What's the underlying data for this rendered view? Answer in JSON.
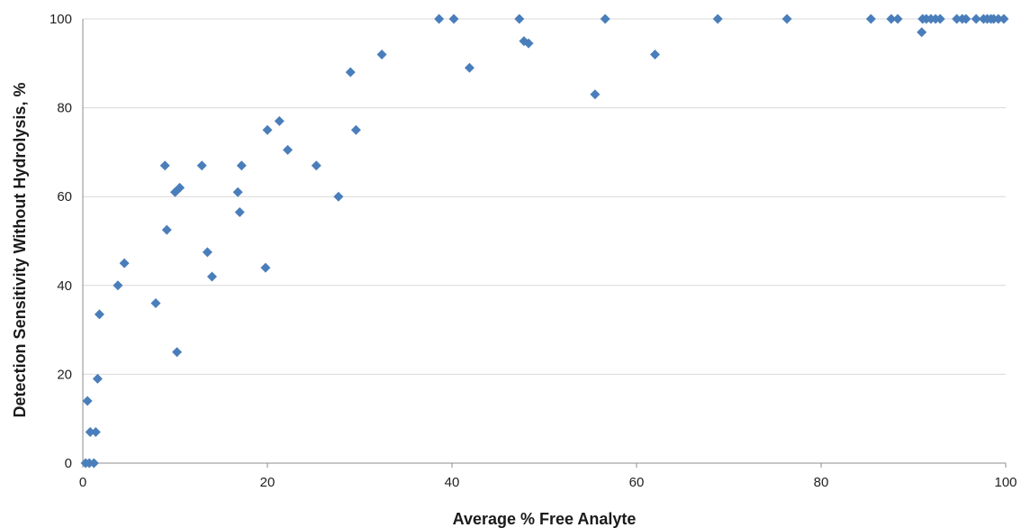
{
  "chart_data": {
    "type": "scatter",
    "title": "",
    "xlabel": "Average % Free Analyte",
    "ylabel": "Detection Sensitivity Without Hydrolysis, %",
    "xlim": [
      0,
      100
    ],
    "ylim": [
      0,
      100
    ],
    "x_ticks": [
      "0",
      "20",
      "40",
      "60",
      "80",
      "100"
    ],
    "y_ticks": [
      "0",
      "20",
      "40",
      "60",
      "80",
      "100"
    ],
    "grid": "horizontal",
    "legend": "none",
    "marker": "diamond",
    "marker_color": "#4a7ebb",
    "series": [
      {
        "points": [
          [
            0.3,
            0
          ],
          [
            0.7,
            0
          ],
          [
            1.2,
            0
          ],
          [
            0.5,
            14
          ],
          [
            0.8,
            7
          ],
          [
            1.4,
            7
          ],
          [
            1.6,
            19
          ],
          [
            1.8,
            33.5
          ],
          [
            3.8,
            40
          ],
          [
            4.5,
            45
          ],
          [
            7.9,
            36
          ],
          [
            8.9,
            67
          ],
          [
            9.1,
            52.5
          ],
          [
            10.0,
            61
          ],
          [
            10.5,
            62
          ],
          [
            10.2,
            25
          ],
          [
            12.9,
            67
          ],
          [
            13.5,
            47.5
          ],
          [
            14.0,
            42
          ],
          [
            16.8,
            61
          ],
          [
            17.0,
            56.5
          ],
          [
            17.2,
            67
          ],
          [
            19.8,
            44
          ],
          [
            20.0,
            75
          ],
          [
            21.3,
            77
          ],
          [
            22.2,
            70.5
          ],
          [
            25.3,
            67
          ],
          [
            27.7,
            60
          ],
          [
            29.0,
            88
          ],
          [
            29.6,
            75
          ],
          [
            32.4,
            92
          ],
          [
            38.6,
            100
          ],
          [
            40.2,
            100
          ],
          [
            41.9,
            89
          ],
          [
            47.3,
            100
          ],
          [
            47.8,
            95
          ],
          [
            48.3,
            94.5
          ],
          [
            55.5,
            83
          ],
          [
            56.6,
            100
          ],
          [
            62.0,
            92
          ],
          [
            68.8,
            100
          ],
          [
            76.3,
            100
          ],
          [
            85.4,
            100
          ],
          [
            87.6,
            100
          ],
          [
            88.3,
            100
          ],
          [
            90.9,
            97
          ],
          [
            91.0,
            100
          ],
          [
            91.4,
            100
          ],
          [
            91.9,
            100
          ],
          [
            92.4,
            100
          ],
          [
            92.9,
            100
          ],
          [
            94.7,
            100
          ],
          [
            95.3,
            100
          ],
          [
            95.7,
            100
          ],
          [
            96.8,
            100
          ],
          [
            97.6,
            100
          ],
          [
            98.0,
            100
          ],
          [
            98.4,
            100
          ],
          [
            98.7,
            100
          ],
          [
            99.2,
            100
          ],
          [
            99.8,
            100
          ]
        ]
      }
    ]
  }
}
